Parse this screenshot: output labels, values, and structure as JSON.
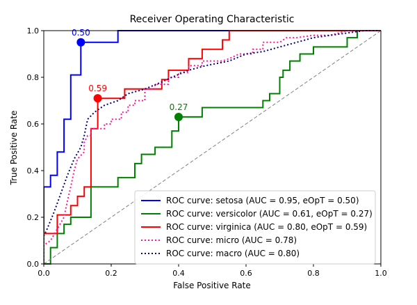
{
  "chart_data": {
    "type": "line",
    "title": "Receiver Operating Characteristic",
    "xlabel": "False Positive Rate",
    "ylabel": "True Positive Rate",
    "xlim": [
      0.0,
      1.0
    ],
    "ylim": [
      0.0,
      1.0
    ],
    "xticks": [
      "0.0",
      "0.2",
      "0.4",
      "0.6",
      "0.8",
      "1.0"
    ],
    "yticks": [
      "0.0",
      "0.2",
      "0.4",
      "0.6",
      "0.8",
      "1.0"
    ],
    "grid": false,
    "legend_position": "lower-right",
    "series": [
      {
        "name": "ROC curve: setosa (AUC = 0.95, eOpT = 0.50)",
        "color": "#0000ff",
        "style": "solid",
        "points": [
          [
            0,
            0
          ],
          [
            0,
            0.33
          ],
          [
            0.02,
            0.33
          ],
          [
            0.02,
            0.38
          ],
          [
            0.04,
            0.38
          ],
          [
            0.04,
            0.48
          ],
          [
            0.06,
            0.48
          ],
          [
            0.06,
            0.62
          ],
          [
            0.08,
            0.62
          ],
          [
            0.08,
            0.81
          ],
          [
            0.11,
            0.81
          ],
          [
            0.11,
            0.95
          ],
          [
            0.22,
            0.95
          ],
          [
            0.22,
            1.0
          ],
          [
            1.0,
            1.0
          ]
        ]
      },
      {
        "name": "ROC curve: versicolor (AUC = 0.61, eOpT = 0.27)",
        "color": "#008000",
        "style": "solid",
        "points": [
          [
            0,
            0
          ],
          [
            0.02,
            0
          ],
          [
            0.02,
            0.03
          ],
          [
            0.02,
            0.07
          ],
          [
            0.04,
            0.07
          ],
          [
            0.04,
            0.13
          ],
          [
            0.06,
            0.13
          ],
          [
            0.06,
            0.17
          ],
          [
            0.08,
            0.17
          ],
          [
            0.08,
            0.2
          ],
          [
            0.14,
            0.2
          ],
          [
            0.14,
            0.33
          ],
          [
            0.22,
            0.33
          ],
          [
            0.22,
            0.37
          ],
          [
            0.27,
            0.37
          ],
          [
            0.27,
            0.43
          ],
          [
            0.29,
            0.43
          ],
          [
            0.29,
            0.47
          ],
          [
            0.33,
            0.47
          ],
          [
            0.33,
            0.5
          ],
          [
            0.38,
            0.5
          ],
          [
            0.38,
            0.57
          ],
          [
            0.4,
            0.57
          ],
          [
            0.4,
            0.63
          ],
          [
            0.47,
            0.63
          ],
          [
            0.47,
            0.67
          ],
          [
            0.65,
            0.67
          ],
          [
            0.65,
            0.7
          ],
          [
            0.67,
            0.7
          ],
          [
            0.67,
            0.73
          ],
          [
            0.7,
            0.73
          ],
          [
            0.7,
            0.8
          ],
          [
            0.71,
            0.8
          ],
          [
            0.71,
            0.83
          ],
          [
            0.73,
            0.83
          ],
          [
            0.73,
            0.87
          ],
          [
            0.76,
            0.87
          ],
          [
            0.76,
            0.9
          ],
          [
            0.8,
            0.9
          ],
          [
            0.8,
            0.93
          ],
          [
            0.9,
            0.93
          ],
          [
            0.9,
            0.97
          ],
          [
            0.93,
            0.97
          ],
          [
            0.93,
            1.0
          ],
          [
            1.0,
            1.0
          ]
        ]
      },
      {
        "name": "ROC curve: virginica (AUC = 0.80, eOpT = 0.59)",
        "color": "#ff0000",
        "style": "solid",
        "points": [
          [
            0,
            0
          ],
          [
            0,
            0.13
          ],
          [
            0.04,
            0.13
          ],
          [
            0.04,
            0.21
          ],
          [
            0.08,
            0.21
          ],
          [
            0.08,
            0.25
          ],
          [
            0.1,
            0.25
          ],
          [
            0.1,
            0.29
          ],
          [
            0.12,
            0.29
          ],
          [
            0.12,
            0.33
          ],
          [
            0.14,
            0.33
          ],
          [
            0.14,
            0.58
          ],
          [
            0.16,
            0.58
          ],
          [
            0.16,
            0.71
          ],
          [
            0.24,
            0.71
          ],
          [
            0.24,
            0.75
          ],
          [
            0.35,
            0.75
          ],
          [
            0.35,
            0.79
          ],
          [
            0.37,
            0.79
          ],
          [
            0.37,
            0.83
          ],
          [
            0.43,
            0.83
          ],
          [
            0.43,
            0.88
          ],
          [
            0.47,
            0.88
          ],
          [
            0.47,
            0.92
          ],
          [
            0.53,
            0.92
          ],
          [
            0.53,
            0.96
          ],
          [
            0.55,
            0.96
          ],
          [
            0.55,
            1.0
          ],
          [
            1.0,
            1.0
          ]
        ]
      },
      {
        "name": "ROC curve: micro (AUC = 0.78)",
        "color": "#ff1493",
        "style": "dotted",
        "points": [
          [
            0,
            0
          ],
          [
            0,
            0.08
          ],
          [
            0.02,
            0.1
          ],
          [
            0.04,
            0.15
          ],
          [
            0.06,
            0.2
          ],
          [
            0.07,
            0.27
          ],
          [
            0.08,
            0.33
          ],
          [
            0.09,
            0.4
          ],
          [
            0.1,
            0.45
          ],
          [
            0.12,
            0.48
          ],
          [
            0.12,
            0.52
          ],
          [
            0.13,
            0.55
          ],
          [
            0.14,
            0.55
          ],
          [
            0.14,
            0.58
          ],
          [
            0.18,
            0.58
          ],
          [
            0.18,
            0.6
          ],
          [
            0.2,
            0.6
          ],
          [
            0.2,
            0.62
          ],
          [
            0.23,
            0.62
          ],
          [
            0.23,
            0.65
          ],
          [
            0.25,
            0.65
          ],
          [
            0.25,
            0.68
          ],
          [
            0.27,
            0.68
          ],
          [
            0.27,
            0.7
          ],
          [
            0.3,
            0.7
          ],
          [
            0.3,
            0.75
          ],
          [
            0.33,
            0.75
          ],
          [
            0.33,
            0.77
          ],
          [
            0.37,
            0.77
          ],
          [
            0.37,
            0.8
          ],
          [
            0.4,
            0.8
          ],
          [
            0.4,
            0.82
          ],
          [
            0.43,
            0.82
          ],
          [
            0.43,
            0.85
          ],
          [
            0.47,
            0.85
          ],
          [
            0.47,
            0.87
          ],
          [
            0.53,
            0.87
          ],
          [
            0.55,
            0.88
          ],
          [
            0.58,
            0.9
          ],
          [
            0.62,
            0.9
          ],
          [
            0.62,
            0.92
          ],
          [
            0.65,
            0.92
          ],
          [
            0.65,
            0.95
          ],
          [
            0.7,
            0.95
          ],
          [
            0.72,
            0.97
          ],
          [
            0.75,
            0.97
          ],
          [
            0.8,
            0.98
          ],
          [
            0.85,
            0.98
          ],
          [
            0.9,
            1.0
          ],
          [
            1.0,
            1.0
          ]
        ]
      },
      {
        "name": "ROC curve: macro (AUC = 0.80)",
        "color": "#000080",
        "style": "dotted",
        "points": [
          [
            0,
            0
          ],
          [
            0.0,
            0.12
          ],
          [
            0.01,
            0.15
          ],
          [
            0.03,
            0.22
          ],
          [
            0.05,
            0.3
          ],
          [
            0.07,
            0.38
          ],
          [
            0.09,
            0.45
          ],
          [
            0.11,
            0.5
          ],
          [
            0.12,
            0.55
          ],
          [
            0.13,
            0.62
          ],
          [
            0.15,
            0.65
          ],
          [
            0.18,
            0.68
          ],
          [
            0.22,
            0.7
          ],
          [
            0.25,
            0.73
          ],
          [
            0.3,
            0.75
          ],
          [
            0.35,
            0.78
          ],
          [
            0.38,
            0.8
          ],
          [
            0.43,
            0.83
          ],
          [
            0.48,
            0.85
          ],
          [
            0.55,
            0.87
          ],
          [
            0.6,
            0.9
          ],
          [
            0.65,
            0.91
          ],
          [
            0.7,
            0.93
          ],
          [
            0.75,
            0.95
          ],
          [
            0.8,
            0.97
          ],
          [
            0.85,
            0.98
          ],
          [
            0.9,
            0.99
          ],
          [
            0.95,
            1.0
          ],
          [
            1.0,
            1.0
          ]
        ]
      },
      {
        "name": "",
        "color": "#808080",
        "style": "dashed",
        "points": [
          [
            0,
            0
          ],
          [
            1,
            1
          ]
        ]
      }
    ],
    "optimal_points": [
      {
        "series": "setosa",
        "x": 0.11,
        "y": 0.95,
        "label": "0.50",
        "color": "#0000ff"
      },
      {
        "series": "versicolor",
        "x": 0.4,
        "y": 0.63,
        "label": "0.27",
        "color": "#008000"
      },
      {
        "series": "virginica",
        "x": 0.16,
        "y": 0.71,
        "label": "0.59",
        "color": "#ff0000"
      }
    ]
  }
}
